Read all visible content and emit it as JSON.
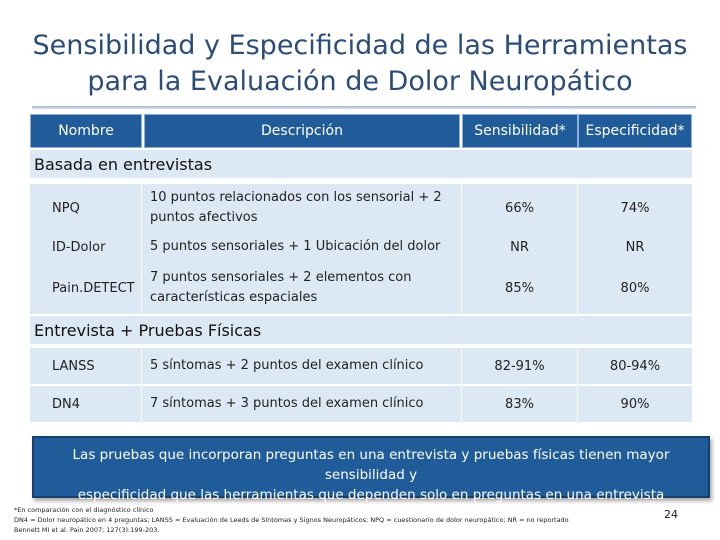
{
  "title": {
    "line1": "Sensibilidad y Especificidad de las Herramientas",
    "line2": "para la Evaluación de Dolor Neuropático"
  },
  "table": {
    "headers": {
      "name": "Nombre",
      "description": "Descripción",
      "sensitivity": "Sensibilidad*",
      "specificity": "Especificidad*"
    },
    "sections": [
      {
        "label": "Basada en entrevistas",
        "rows": [
          {
            "name": "NPQ",
            "desc1": "10 puntos relacionados con los sensorial + 2",
            "desc2": "puntos afectivos",
            "sens": "66%",
            "spec": "74%"
          },
          {
            "name": "ID-Dolor",
            "desc1": "5 puntos sensoriales + 1 Ubicación del dolor",
            "desc2": "",
            "sens": "NR",
            "spec": "NR"
          },
          {
            "name": "Pain.DETECT",
            "desc1": "7 puntos sensoriales + 2 elementos con",
            "desc2": "características espaciales",
            "sens": "85%",
            "spec": "80%"
          }
        ]
      },
      {
        "label": "Entrevista + Pruebas Físicas",
        "rows": [
          {
            "name": "LANSS",
            "desc1": "5 síntomas + 2 puntos del examen clínico",
            "desc2": "",
            "sens": "82-91%",
            "spec": "80-94%"
          },
          {
            "name": "DN4",
            "desc1": "7 síntomas + 3 puntos del examen clínico",
            "desc2": "",
            "sens": "83%",
            "spec": "90%"
          }
        ]
      }
    ]
  },
  "callout": {
    "line1": "Las pruebas que incorporan preguntas en una entrevista y pruebas físicas tienen mayor sensibilidad y",
    "line2": "especificidad que las herramientas que dependen solo en preguntas en una entrevista"
  },
  "footnotes": {
    "line1": "*En comparación con el diagnóstico clínico",
    "line2": "DN4 = Dolor neuropático en 4 preguntas; LANSS = Evaluación de Leeds de Síntomas y Signos Neuropáticos; NPQ = cuestionario de dolor neuropático; NR = no reportado",
    "line3": "Bennett MI et al. Pain 2007; 127(3):199-203."
  },
  "page_number": "24"
}
